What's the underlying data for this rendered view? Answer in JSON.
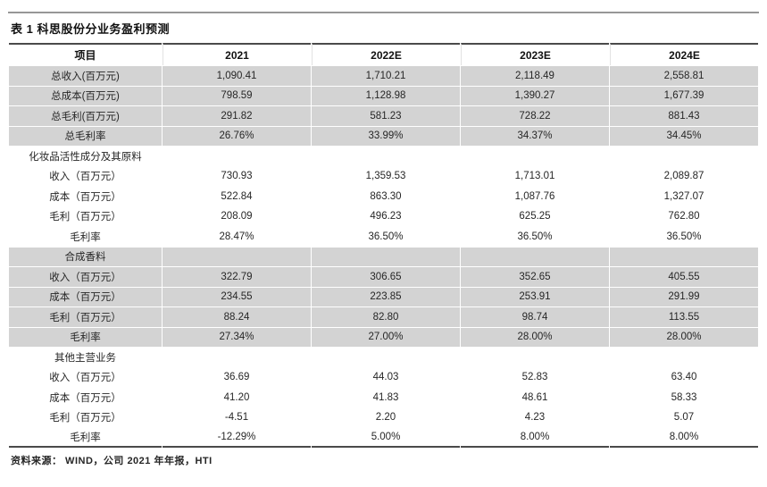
{
  "title": "表 1 科思股份分业务盈利预测",
  "source_note": "资料来源：  WIND，公司 2021 年年报，HTI",
  "colors": {
    "row_shade": "#d3d3d3",
    "top_rule": "#979797",
    "header_rule": "#4a4a4a",
    "bottom_rule": "#4a4a4a",
    "text": "#262626"
  },
  "table": {
    "columns": [
      "项目",
      "2021",
      "2022E",
      "2023E",
      "2024E"
    ],
    "rows": [
      {
        "label": "总收入(百万元)",
        "values": [
          "1,090.41",
          "1,710.21",
          "2,118.49",
          "2,558.81"
        ],
        "shaded": true,
        "section": false
      },
      {
        "label": "总成本(百万元)",
        "values": [
          "798.59",
          "1,128.98",
          "1,390.27",
          "1,677.39"
        ],
        "shaded": true,
        "section": false
      },
      {
        "label": "总毛利(百万元)",
        "values": [
          "291.82",
          "581.23",
          "728.22",
          "881.43"
        ],
        "shaded": true,
        "section": false
      },
      {
        "label": "总毛利率",
        "values": [
          "26.76%",
          "33.99%",
          "34.37%",
          "34.45%"
        ],
        "shaded": true,
        "section": false
      },
      {
        "label": "化妆品活性成分及其原料",
        "values": [
          "",
          "",
          "",
          ""
        ],
        "shaded": false,
        "section": true
      },
      {
        "label": "收入（百万元）",
        "values": [
          "730.93",
          "1,359.53",
          "1,713.01",
          "2,089.87"
        ],
        "shaded": false,
        "section": false
      },
      {
        "label": "成本（百万元）",
        "values": [
          "522.84",
          "863.30",
          "1,087.76",
          "1,327.07"
        ],
        "shaded": false,
        "section": false
      },
      {
        "label": "毛利（百万元）",
        "values": [
          "208.09",
          "496.23",
          "625.25",
          "762.80"
        ],
        "shaded": false,
        "section": false
      },
      {
        "label": "毛利率",
        "values": [
          "28.47%",
          "36.50%",
          "36.50%",
          "36.50%"
        ],
        "shaded": false,
        "section": false
      },
      {
        "label": "合成香料",
        "values": [
          "",
          "",
          "",
          ""
        ],
        "shaded": true,
        "section": true
      },
      {
        "label": "收入（百万元）",
        "values": [
          "322.79",
          "306.65",
          "352.65",
          "405.55"
        ],
        "shaded": true,
        "section": false
      },
      {
        "label": "成本（百万元）",
        "values": [
          "234.55",
          "223.85",
          "253.91",
          "291.99"
        ],
        "shaded": true,
        "section": false
      },
      {
        "label": "毛利（百万元）",
        "values": [
          "88.24",
          "82.80",
          "98.74",
          "113.55"
        ],
        "shaded": true,
        "section": false
      },
      {
        "label": "毛利率",
        "values": [
          "27.34%",
          "27.00%",
          "28.00%",
          "28.00%"
        ],
        "shaded": true,
        "section": false
      },
      {
        "label": "其他主营业务",
        "values": [
          "",
          "",
          "",
          ""
        ],
        "shaded": false,
        "section": true
      },
      {
        "label": "收入（百万元）",
        "values": [
          "36.69",
          "44.03",
          "52.83",
          "63.40"
        ],
        "shaded": false,
        "section": false
      },
      {
        "label": "成本（百万元）",
        "values": [
          "41.20",
          "41.83",
          "48.61",
          "58.33"
        ],
        "shaded": false,
        "section": false
      },
      {
        "label": "毛利（百万元）",
        "values": [
          "-4.51",
          "2.20",
          "4.23",
          "5.07"
        ],
        "shaded": false,
        "section": false
      },
      {
        "label": "毛利率",
        "values": [
          "-12.29%",
          "5.00%",
          "8.00%",
          "8.00%"
        ],
        "shaded": false,
        "section": false
      }
    ]
  }
}
